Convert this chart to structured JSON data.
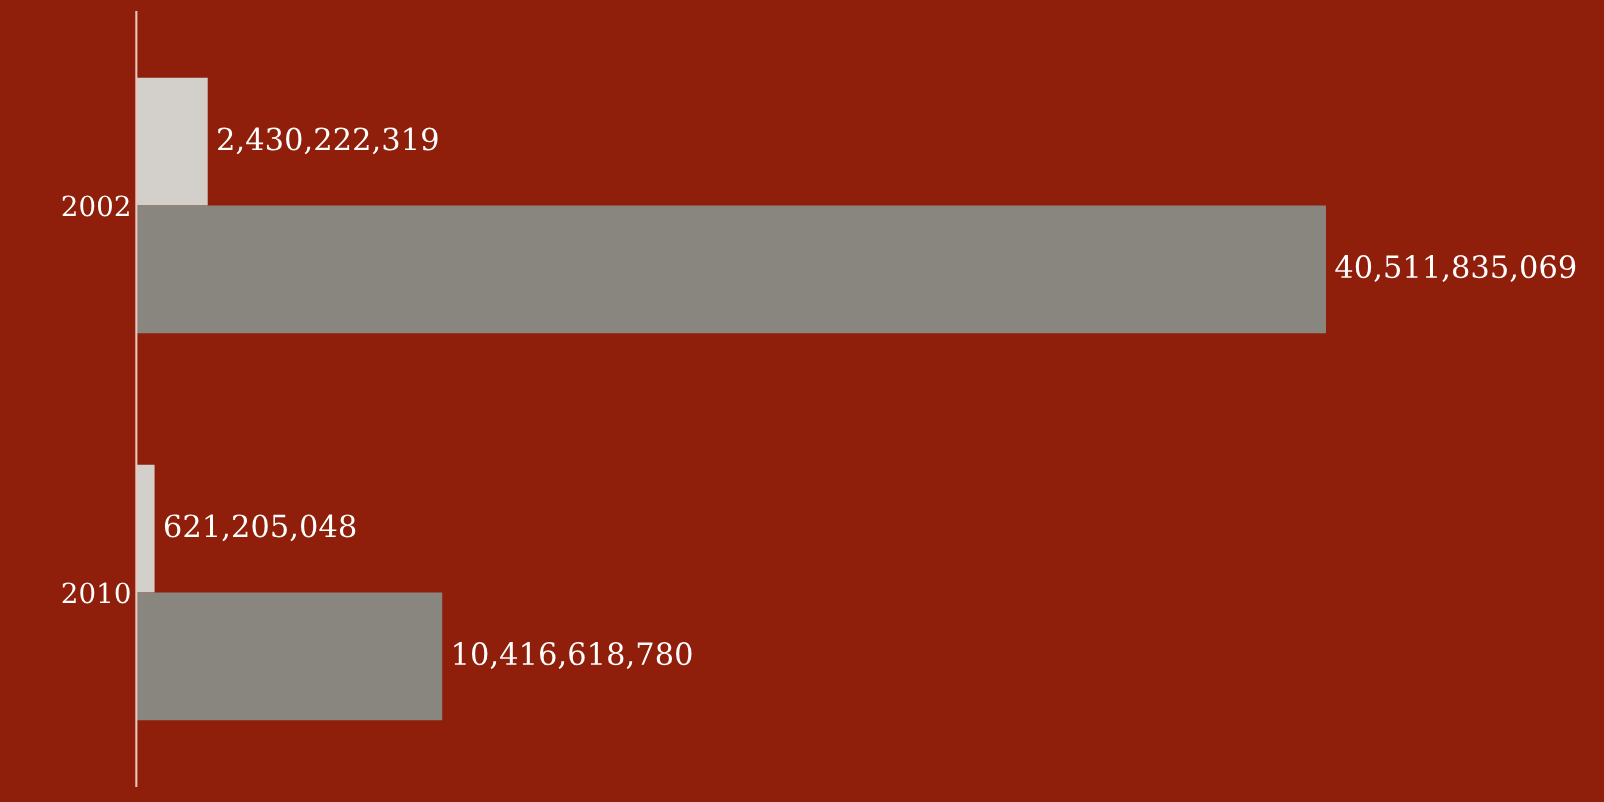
{
  "chart_data": {
    "type": "bar",
    "orientation": "horizontal",
    "categories": [
      "2002",
      "2010"
    ],
    "series": [
      {
        "color": "#d3d0cb",
        "values": [
          2430222319,
          621205048
        ],
        "value_labels": [
          "2,430,222,319",
          "621,205,048"
        ]
      },
      {
        "color": "#898680",
        "values": [
          40511835069,
          10416618780
        ],
        "value_labels": [
          "40,511,835,069",
          "10,416,618,780"
        ]
      }
    ],
    "grid": false,
    "legend": false,
    "tick_labels": "y"
  }
}
